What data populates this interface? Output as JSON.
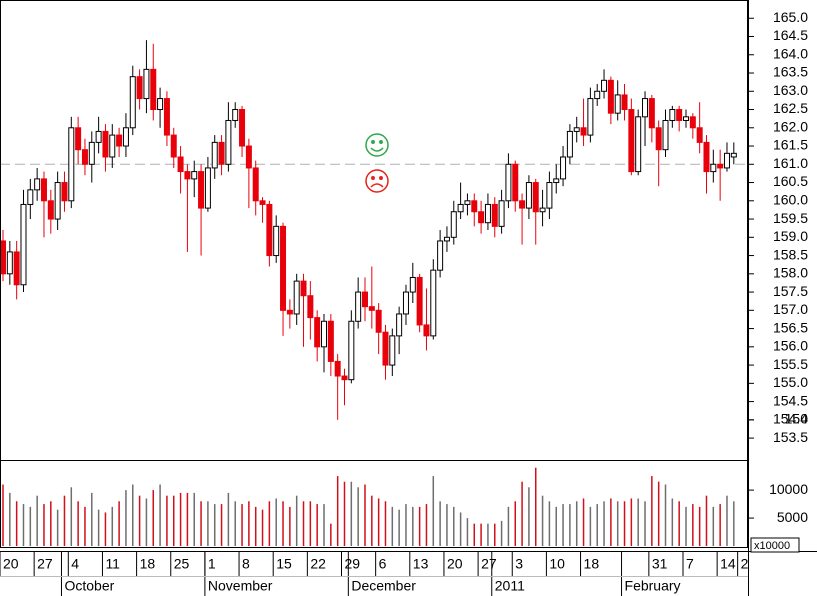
{
  "chart_data": {
    "type": "candlestick",
    "categories": [
      "20",
      null,
      null,
      null,
      null,
      "27",
      null,
      null,
      null,
      null,
      "4",
      null,
      null,
      null,
      null,
      "11",
      null,
      null,
      null,
      null,
      "18",
      null,
      null,
      null,
      null,
      "25",
      null,
      null,
      null,
      null,
      "1",
      null,
      null,
      null,
      null,
      "8",
      null,
      null,
      null,
      null,
      "15",
      null,
      null,
      null,
      null,
      "22",
      null,
      null,
      null,
      null,
      "29",
      null,
      null,
      null,
      null,
      "6",
      null,
      null,
      null,
      null,
      "13",
      null,
      null,
      null,
      null,
      "20",
      null,
      null,
      null,
      null,
      "27",
      null,
      null,
      null,
      null,
      "3",
      null,
      null,
      null,
      null,
      "10",
      null,
      null,
      null,
      null,
      "18",
      null,
      null,
      null,
      null,
      null,
      null,
      null,
      null,
      null,
      "31",
      null,
      null,
      null,
      null,
      "7",
      null,
      null,
      null,
      null,
      "14",
      null,
      null,
      "2"
    ],
    "months": [
      null,
      null,
      null,
      null,
      null,
      null,
      null,
      null,
      null,
      "October",
      null,
      null,
      null,
      null,
      null,
      null,
      null,
      null,
      null,
      null,
      null,
      null,
      null,
      null,
      null,
      null,
      null,
      null,
      null,
      null,
      "November",
      null,
      null,
      null,
      null,
      null,
      null,
      null,
      null,
      null,
      null,
      null,
      null,
      null,
      null,
      null,
      null,
      null,
      null,
      null,
      null,
      "December",
      null,
      null,
      null,
      null,
      null,
      null,
      null,
      null,
      null,
      null,
      null,
      null,
      null,
      null,
      null,
      null,
      null,
      null,
      null,
      null,
      "2011",
      null,
      null,
      null,
      null,
      null,
      null,
      null,
      null,
      null,
      null,
      null,
      null,
      null,
      null,
      null,
      null,
      null,
      null,
      "February",
      null,
      null,
      null,
      null,
      null,
      null,
      null,
      null,
      null,
      null,
      null,
      null,
      null,
      null
    ],
    "open": [
      158.9,
      158.0,
      158.6,
      157.7,
      159.9,
      160.3,
      160.6,
      160.0,
      159.5,
      160.5,
      160.0,
      162.0,
      161.4,
      161.0,
      161.6,
      161.9,
      161.2,
      161.8,
      161.5,
      162.0,
      163.4,
      162.8,
      163.6,
      162.5,
      162.8,
      161.8,
      161.2,
      160.8,
      160.6,
      160.8,
      159.8,
      160.9,
      161.6,
      161.0,
      162.2,
      162.5,
      161.5,
      160.9,
      160.0,
      159.9,
      158.5,
      159.3,
      157.0,
      156.9,
      157.8,
      157.4,
      156.8,
      156.0,
      156.7,
      155.6,
      155.2,
      155.1,
      156.7,
      157.5,
      157.1,
      157.0,
      156.4,
      155.5,
      156.3,
      156.9,
      157.5,
      157.9,
      156.6,
      156.3,
      158.1,
      158.9,
      159.0,
      159.7,
      159.9,
      160.0,
      159.7,
      159.4,
      159.9,
      159.3,
      160.0,
      161.0,
      160.0,
      159.8,
      160.5,
      159.7,
      159.8,
      160.5,
      160.6,
      161.2,
      161.9,
      162.0,
      161.8,
      162.8,
      163.0,
      163.3,
      162.4,
      162.9,
      162.5,
      160.8,
      162.3,
      162.8,
      162.0,
      161.4,
      162.2,
      162.5,
      162.2,
      162.3,
      162.0,
      161.6,
      160.8,
      161.0,
      160.9,
      161.2,
      null
    ],
    "high": [
      159.2,
      158.9,
      158.9,
      160.3,
      160.6,
      160.9,
      160.8,
      160.3,
      160.8,
      160.8,
      162.3,
      162.3,
      161.7,
      161.9,
      162.3,
      162.1,
      162.1,
      162.0,
      162.4,
      163.7,
      163.6,
      164.4,
      164.3,
      163.1,
      163.0,
      162.0,
      161.5,
      161.0,
      161.1,
      161.0,
      161.2,
      161.8,
      161.8,
      162.7,
      162.7,
      162.6,
      161.7,
      161.1,
      160.1,
      160.0,
      159.6,
      159.4,
      157.3,
      158.0,
      158.0,
      157.8,
      157.0,
      156.9,
      156.9,
      155.8,
      155.4,
      157.0,
      157.9,
      157.9,
      158.2,
      157.2,
      156.6,
      156.5,
      157.1,
      157.7,
      158.3,
      158.0,
      157.6,
      158.4,
      159.2,
      159.3,
      160.0,
      160.5,
      160.2,
      160.2,
      160.0,
      160.2,
      160.1,
      160.3,
      161.3,
      161.1,
      160.2,
      160.7,
      160.6,
      160.3,
      160.8,
      161.0,
      161.5,
      162.1,
      162.3,
      162.8,
      163.1,
      163.2,
      163.6,
      163.4,
      163.3,
      163.2,
      162.8,
      162.5,
      163.0,
      162.9,
      162.2,
      162.5,
      162.6,
      162.6,
      162.5,
      162.4,
      162.7,
      161.8,
      161.4,
      161.4,
      161.6,
      161.6,
      null
    ],
    "low": [
      157.8,
      157.7,
      157.3,
      157.5,
      159.5,
      160.0,
      159.0,
      159.1,
      159.2,
      159.7,
      159.8,
      161.0,
      160.7,
      160.5,
      161.3,
      160.8,
      160.9,
      161.2,
      161.2,
      161.8,
      162.5,
      162.4,
      162.2,
      162.0,
      161.5,
      160.9,
      160.2,
      158.6,
      160.1,
      158.5,
      159.7,
      160.6,
      160.7,
      160.8,
      162.0,
      161.2,
      159.8,
      159.6,
      159.4,
      158.2,
      158.3,
      156.3,
      156.5,
      156.6,
      156.0,
      156.2,
      155.6,
      155.3,
      155.2,
      154.0,
      154.4,
      155.0,
      156.5,
      156.7,
      156.5,
      155.8,
      155.1,
      155.2,
      155.8,
      156.6,
      157.2,
      156.4,
      155.9,
      156.2,
      157.9,
      158.6,
      158.8,
      159.5,
      159.6,
      159.3,
      159.1,
      159.2,
      159.0,
      159.1,
      159.8,
      159.7,
      158.8,
      159.5,
      158.8,
      159.3,
      159.5,
      160.2,
      160.4,
      161.0,
      161.6,
      161.5,
      161.6,
      162.6,
      162.8,
      162.1,
      162.2,
      162.2,
      160.7,
      160.7,
      161.5,
      161.6,
      160.4,
      161.2,
      162.0,
      161.9,
      162.0,
      161.7,
      161.3,
      160.2,
      160.5,
      160.0,
      160.8,
      161.0,
      null
    ],
    "close": [
      158.0,
      158.6,
      157.7,
      159.9,
      160.3,
      160.6,
      160.0,
      159.5,
      160.5,
      160.0,
      162.0,
      161.4,
      161.0,
      161.6,
      161.9,
      161.2,
      161.8,
      161.5,
      162.0,
      163.4,
      162.8,
      163.6,
      162.5,
      162.8,
      161.8,
      161.2,
      160.8,
      160.6,
      160.8,
      159.8,
      160.9,
      161.6,
      161.0,
      162.2,
      162.5,
      161.5,
      160.9,
      160.0,
      159.9,
      158.5,
      159.3,
      157.0,
      156.9,
      157.8,
      157.4,
      156.8,
      156.0,
      156.7,
      155.6,
      155.2,
      155.1,
      156.7,
      157.5,
      157.1,
      157.0,
      156.4,
      155.5,
      156.3,
      156.9,
      157.5,
      157.9,
      156.6,
      156.3,
      158.1,
      158.9,
      159.0,
      159.7,
      159.9,
      160.0,
      159.7,
      159.4,
      159.9,
      159.3,
      160.0,
      161.0,
      160.0,
      159.8,
      160.5,
      159.7,
      159.8,
      160.5,
      160.6,
      161.2,
      161.9,
      162.0,
      161.8,
      162.8,
      163.0,
      163.3,
      162.4,
      162.9,
      162.5,
      160.8,
      162.3,
      162.8,
      162.0,
      161.4,
      162.2,
      162.5,
      162.2,
      162.3,
      162.0,
      161.6,
      160.8,
      161.0,
      160.9,
      161.3,
      161.3,
      null
    ],
    "volume": [
      11000,
      9500,
      8000,
      7500,
      7000,
      9000,
      7500,
      8000,
      6500,
      9000,
      10500,
      8000,
      7000,
      9500,
      6500,
      6000,
      7000,
      8000,
      10000,
      11000,
      9000,
      8500,
      10000,
      11000,
      9000,
      9000,
      9500,
      9500,
      9500,
      8000,
      8000,
      7500,
      7500,
      9500,
      8000,
      7500,
      8000,
      7000,
      6500,
      8000,
      8500,
      8000,
      7000,
      9000,
      8000,
      8000,
      7500,
      7500,
      4000,
      12500,
      11500,
      11500,
      10500,
      11000,
      9000,
      8500,
      8000,
      7000,
      6500,
      7500,
      7000,
      7000,
      7500,
      12500,
      8000,
      7500,
      7000,
      6000,
      5000,
      4000,
      4000,
      4000,
      4000,
      4500,
      7000,
      8000,
      11500,
      10500,
      14000,
      9000,
      8000,
      7000,
      7500,
      7500,
      8000,
      8500,
      7000,
      7500,
      8000,
      8500,
      8000,
      8000,
      8500,
      8500,
      8000,
      12500,
      11500,
      11000,
      8500,
      8000,
      7000,
      7500,
      7000,
      9000,
      7000,
      7500,
      9000,
      8000,
      null
    ],
    "up_color": "#ffffff",
    "down_color": "#e8000b",
    "volume_up_color": "#6e6e6e",
    "volume_down_color": "#d0101a",
    "ylim": [
      152.9,
      165.5
    ],
    "yticks": [
      153.5,
      154,
      {
        "value": 154,
        "label": "154.0"
      },
      154.5,
      {
        "value": 155,
        "label": "155.0"
      },
      155.5,
      {
        "value": 156,
        "label": "156.0"
      },
      156.5,
      {
        "value": 157,
        "label": "157.0"
      },
      157.5,
      {
        "value": 158,
        "label": "158.0"
      },
      158.5,
      {
        "value": 159,
        "label": "159.0"
      },
      159.5,
      {
        "value": 160,
        "label": "160.0"
      },
      160.5,
      {
        "value": 161,
        "label": "161.0"
      },
      161.5,
      {
        "value": 162,
        "label": "162.0"
      },
      162.5,
      {
        "value": 163,
        "label": "163.0"
      },
      163.5,
      {
        "value": 164,
        "label": "164.0"
      },
      164.5,
      {
        "value": 165,
        "label": "165.0"
      }
    ],
    "reference_line": 161.0,
    "volume_ylim": [
      -350,
      15200
    ],
    "volume_yticks": [
      5000,
      10000
    ],
    "volume_multiplier": "x10000"
  }
}
